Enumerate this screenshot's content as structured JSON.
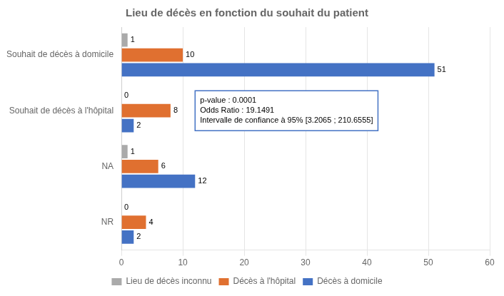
{
  "chart_data": {
    "type": "bar",
    "orientation": "horizontal",
    "title": "Lieu de décès en fonction du souhait du patient",
    "categories": [
      "Souhait de décès à domicile",
      "Souhait de décès à l'hôpital",
      "NA",
      "NR"
    ],
    "series": [
      {
        "name": "Lieu de décès inconnu",
        "color": "#aaaaaa",
        "values": [
          1,
          0,
          1,
          0
        ]
      },
      {
        "name": "Décès à l'hôpital",
        "color": "#e07030",
        "values": [
          10,
          8,
          6,
          4
        ]
      },
      {
        "name": "Décès à domicile",
        "color": "#4472c4",
        "values": [
          51,
          2,
          12,
          2
        ]
      }
    ],
    "xlim": [
      0,
      60
    ],
    "xticks": [
      0,
      10,
      20,
      30,
      40,
      50,
      60
    ],
    "grid": true,
    "data_labels": true,
    "legend": "bottom",
    "annotation": "p-value : 0.0001\nOdds Ratio : 19.1491\nIntervalle de confiance à 95% [3.2065 ; 210.6555]"
  }
}
